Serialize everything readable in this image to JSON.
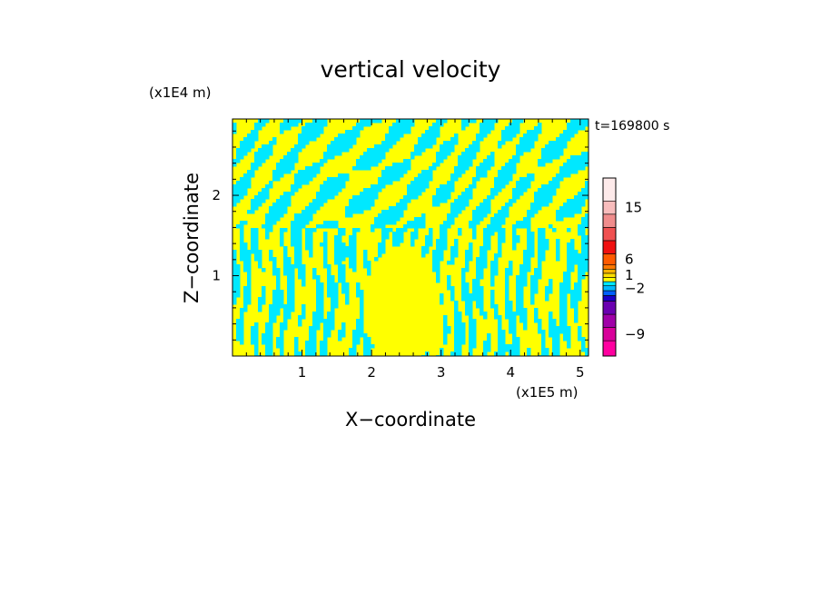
{
  "chart_data": {
    "type": "heatmap",
    "title": "vertical velocity",
    "xlabel": "X−coordinate",
    "ylabel": "Z−coordinate",
    "x_unit": "(x1E5 m)",
    "y_unit": "(x1E4 m)",
    "time_label": "t=169800 s",
    "xlim": [
      0,
      5.12
    ],
    "ylim": [
      0,
      2.95
    ],
    "x_ticks": [
      1,
      2,
      3,
      4,
      5
    ],
    "y_ticks": [
      1,
      2
    ],
    "dominant_colors": {
      "positive_small": "#ffff00",
      "negative_small": "#00e8ff"
    },
    "colorbar": {
      "labels": [
        {
          "text": "15",
          "value": 15
        },
        {
          "text": "6",
          "value": 6
        },
        {
          "text": "1",
          "value": 1
        },
        {
          "text": "−2",
          "value": -2
        },
        {
          "text": "−9",
          "value": -9
        }
      ],
      "levels": [
        {
          "color": "#ff00a0"
        },
        {
          "color": "#d8009a"
        },
        {
          "color": "#a000a8"
        },
        {
          "color": "#6a00b0"
        },
        {
          "color": "#1a00c8"
        },
        {
          "color": "#0060ff"
        },
        {
          "color": "#00b8ff"
        },
        {
          "color": "#00e8ff"
        },
        {
          "color": "#ffff00"
        },
        {
          "color": "#ffe000"
        },
        {
          "color": "#ffb400"
        },
        {
          "color": "#ff7800"
        },
        {
          "color": "#ff5a00"
        },
        {
          "color": "#f01010"
        },
        {
          "color": "#f05050"
        },
        {
          "color": "#f08c8c"
        },
        {
          "color": "#f8bcbc"
        },
        {
          "color": "#fdeaea"
        }
      ]
    }
  }
}
